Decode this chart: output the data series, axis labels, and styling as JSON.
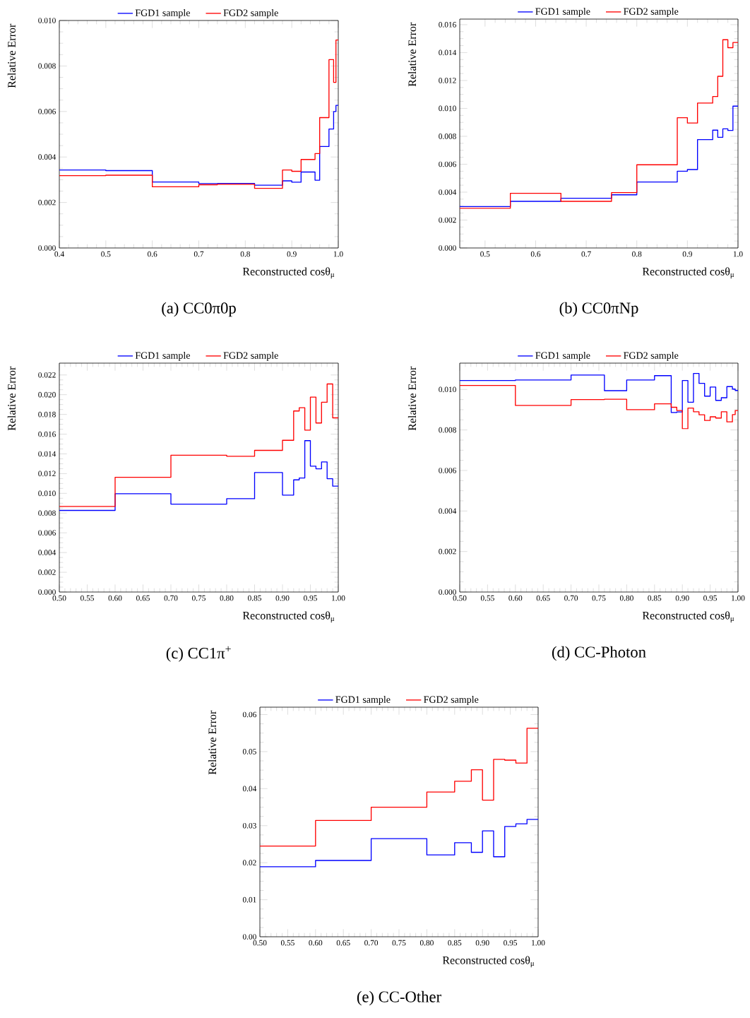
{
  "chart_data": [
    {
      "type": "step",
      "title": "(a) CC0π0p",
      "xlabel": "Reconstructed cosθ$_{μ}$",
      "ylabel": "Relative Error",
      "legend": "top",
      "xlim": [
        0.4,
        1.0
      ],
      "ylim": [
        0,
        0.01
      ],
      "xticks": [
        {
          "value": 0.4,
          "label": "0.4"
        },
        {
          "value": 0.5,
          "label": "0.5"
        },
        {
          "value": 0.6,
          "label": "0.6"
        },
        {
          "value": 0.7,
          "label": "0.7"
        },
        {
          "value": 0.8,
          "label": "0.8"
        },
        {
          "value": 0.9,
          "label": "0.9"
        },
        {
          "value": 1.0,
          "label": "1.0"
        }
      ],
      "yticks": [
        {
          "value": 0,
          "label": "0.000"
        },
        {
          "value": 0.002,
          "label": "0.002"
        },
        {
          "value": 0.004,
          "label": "0.004"
        },
        {
          "value": 0.006,
          "label": "0.006"
        },
        {
          "value": 0.008,
          "label": "0.008"
        },
        {
          "value": 0.01,
          "label": "0.010"
        }
      ],
      "series": [
        {
          "name": "FGD1 sample",
          "color": "#0000ff",
          "x": [
            0.4,
            0.5,
            0.6,
            0.7,
            0.74,
            0.82,
            0.88,
            0.9,
            0.92,
            0.95,
            0.96,
            0.98,
            0.99,
            0.995,
            1.0
          ],
          "values": [
            0.00343,
            0.0034,
            0.0029,
            0.00283,
            0.00284,
            0.00276,
            0.00295,
            0.00289,
            0.00334,
            0.00298,
            0.00446,
            0.00523,
            0.006,
            0.00627,
            0.00627
          ]
        },
        {
          "name": "FGD2 sample",
          "color": "#ff0000",
          "x": [
            0.4,
            0.5,
            0.6,
            0.7,
            0.74,
            0.82,
            0.88,
            0.9,
            0.92,
            0.95,
            0.96,
            0.98,
            0.99,
            0.995,
            1.0
          ],
          "values": [
            0.00318,
            0.0032,
            0.00269,
            0.00278,
            0.0028,
            0.00262,
            0.00343,
            0.00337,
            0.00389,
            0.00415,
            0.00573,
            0.00828,
            0.00728,
            0.00914,
            0.00914
          ]
        }
      ]
    },
    {
      "type": "step",
      "title": "(b) CC0πNp",
      "xlabel": "Reconstructed cosθ$_{μ}$",
      "ylabel": "Relative Error",
      "legend": "top",
      "xlim": [
        0.45,
        1.0
      ],
      "ylim": [
        0,
        0.0164
      ],
      "xticks": [
        {
          "value": 0.5,
          "label": "0.5"
        },
        {
          "value": 0.6,
          "label": "0.6"
        },
        {
          "value": 0.7,
          "label": "0.7"
        },
        {
          "value": 0.8,
          "label": "0.8"
        },
        {
          "value": 0.9,
          "label": "0.9"
        },
        {
          "value": 1.0,
          "label": "1.0"
        }
      ],
      "yticks": [
        {
          "value": 0,
          "label": "0.000"
        },
        {
          "value": 0.002,
          "label": "0.002"
        },
        {
          "value": 0.004,
          "label": "0.004"
        },
        {
          "value": 0.006,
          "label": "0.006"
        },
        {
          "value": 0.008,
          "label": "0.008"
        },
        {
          "value": 0.01,
          "label": "0.010"
        },
        {
          "value": 0.012,
          "label": "0.012"
        },
        {
          "value": 0.014,
          "label": "0.014"
        },
        {
          "value": 0.016,
          "label": "0.016"
        }
      ],
      "series": [
        {
          "name": "FGD1 sample",
          "color": "#0000ff",
          "x": [
            0.45,
            0.55,
            0.65,
            0.75,
            0.8,
            0.88,
            0.9,
            0.92,
            0.95,
            0.96,
            0.97,
            0.98,
            0.99,
            1.0
          ],
          "values": [
            0.00297,
            0.00334,
            0.00356,
            0.00381,
            0.00473,
            0.0055,
            0.00562,
            0.00776,
            0.00844,
            0.00793,
            0.00854,
            0.00842,
            0.01016,
            0.01016
          ]
        },
        {
          "name": "FGD2 sample",
          "color": "#ff0000",
          "x": [
            0.45,
            0.55,
            0.65,
            0.75,
            0.8,
            0.88,
            0.9,
            0.92,
            0.95,
            0.96,
            0.97,
            0.98,
            0.99,
            1.0
          ],
          "values": [
            0.00284,
            0.00392,
            0.00334,
            0.00397,
            0.00596,
            0.00933,
            0.00895,
            0.01038,
            0.01085,
            0.0123,
            0.01492,
            0.01435,
            0.01472,
            0.01472
          ]
        }
      ]
    },
    {
      "type": "step",
      "title": "(c) CC1π$^{+}$",
      "xlabel": "Reconstructed cosθ$_{μ}$",
      "ylabel": "Relative Error",
      "legend": "top",
      "xlim": [
        0.5,
        1.0
      ],
      "ylim": [
        0,
        0.0232
      ],
      "xticks": [
        {
          "value": 0.5,
          "label": "0.50"
        },
        {
          "value": 0.55,
          "label": "0.55"
        },
        {
          "value": 0.6,
          "label": "0.60"
        },
        {
          "value": 0.65,
          "label": "0.65"
        },
        {
          "value": 0.7,
          "label": "0.70"
        },
        {
          "value": 0.75,
          "label": "0.75"
        },
        {
          "value": 0.8,
          "label": "0.80"
        },
        {
          "value": 0.85,
          "label": "0.85"
        },
        {
          "value": 0.9,
          "label": "0.90"
        },
        {
          "value": 0.95,
          "label": "0.95"
        },
        {
          "value": 1.0,
          "label": "1.00"
        }
      ],
      "yticks": [
        {
          "value": 0,
          "label": "0.000"
        },
        {
          "value": 0.002,
          "label": "0.002"
        },
        {
          "value": 0.004,
          "label": "0.004"
        },
        {
          "value": 0.006,
          "label": "0.006"
        },
        {
          "value": 0.008,
          "label": "0.008"
        },
        {
          "value": 0.01,
          "label": "0.010"
        },
        {
          "value": 0.012,
          "label": "0.012"
        },
        {
          "value": 0.014,
          "label": "0.014"
        },
        {
          "value": 0.016,
          "label": "0.016"
        },
        {
          "value": 0.018,
          "label": "0.018"
        },
        {
          "value": 0.02,
          "label": "0.020"
        },
        {
          "value": 0.022,
          "label": "0.022"
        }
      ],
      "series": [
        {
          "name": "FGD1 sample",
          "color": "#0000ff",
          "x": [
            0.5,
            0.6,
            0.7,
            0.8,
            0.85,
            0.9,
            0.92,
            0.93,
            0.94,
            0.95,
            0.96,
            0.97,
            0.98,
            0.99,
            1.0
          ],
          "values": [
            0.00827,
            0.00996,
            0.00891,
            0.00946,
            0.01211,
            0.00982,
            0.01137,
            0.01156,
            0.01534,
            0.01276,
            0.01249,
            0.01319,
            0.01149,
            0.01073,
            0.01073
          ]
        },
        {
          "name": "FGD2 sample",
          "color": "#ff0000",
          "x": [
            0.5,
            0.6,
            0.7,
            0.8,
            0.85,
            0.9,
            0.92,
            0.93,
            0.94,
            0.95,
            0.96,
            0.97,
            0.98,
            0.99,
            1.0
          ],
          "values": [
            0.00867,
            0.01163,
            0.01386,
            0.01376,
            0.01436,
            0.01538,
            0.01835,
            0.01868,
            0.01641,
            0.01976,
            0.01713,
            0.01923,
            0.02109,
            0.01765,
            0.01765
          ]
        }
      ]
    },
    {
      "type": "step",
      "title": "(d) CC-Photon",
      "xlabel": "Reconstructed cosθ$_{μ}$",
      "ylabel": "Relative Error",
      "legend": "top",
      "xlim": [
        0.5,
        1.0
      ],
      "ylim": [
        0,
        0.0113
      ],
      "xticks": [
        {
          "value": 0.5,
          "label": "0.50"
        },
        {
          "value": 0.55,
          "label": "0.55"
        },
        {
          "value": 0.6,
          "label": "0.60"
        },
        {
          "value": 0.65,
          "label": "0.65"
        },
        {
          "value": 0.7,
          "label": "0.70"
        },
        {
          "value": 0.75,
          "label": "0.75"
        },
        {
          "value": 0.8,
          "label": "0.80"
        },
        {
          "value": 0.85,
          "label": "0.85"
        },
        {
          "value": 0.9,
          "label": "0.90"
        },
        {
          "value": 0.95,
          "label": "0.95"
        },
        {
          "value": 1.0,
          "label": "1.00"
        }
      ],
      "yticks": [
        {
          "value": 0,
          "label": "0.000"
        },
        {
          "value": 0.002,
          "label": "0.002"
        },
        {
          "value": 0.004,
          "label": "0.004"
        },
        {
          "value": 0.006,
          "label": "0.006"
        },
        {
          "value": 0.008,
          "label": "0.008"
        },
        {
          "value": 0.01,
          "label": "0.010"
        }
      ],
      "series": [
        {
          "name": "FGD1 sample",
          "color": "#0000ff",
          "x": [
            0.5,
            0.6,
            0.7,
            0.76,
            0.8,
            0.85,
            0.88,
            0.89,
            0.9,
            0.91,
            0.92,
            0.93,
            0.94,
            0.95,
            0.96,
            0.97,
            0.98,
            0.99,
            0.995,
            1.0
          ],
          "values": [
            0.01044,
            0.01047,
            0.01071,
            0.00994,
            0.01047,
            0.01068,
            0.00886,
            0.00889,
            0.01044,
            0.00937,
            0.01079,
            0.0103,
            0.00967,
            0.01012,
            0.00946,
            0.00959,
            0.01014,
            0.01002,
            0.00995,
            0.00995
          ]
        },
        {
          "name": "FGD2 sample",
          "color": "#ff0000",
          "x": [
            0.5,
            0.6,
            0.7,
            0.76,
            0.8,
            0.85,
            0.88,
            0.89,
            0.9,
            0.91,
            0.92,
            0.93,
            0.94,
            0.95,
            0.96,
            0.97,
            0.98,
            0.99,
            0.995,
            1.0
          ],
          "values": [
            0.0102,
            0.00921,
            0.0095,
            0.00952,
            0.009,
            0.00929,
            0.00912,
            0.00896,
            0.00806,
            0.00908,
            0.0089,
            0.00875,
            0.00847,
            0.00865,
            0.00859,
            0.0089,
            0.0084,
            0.00876,
            0.00896,
            0.00896
          ]
        }
      ]
    },
    {
      "type": "step",
      "title": "(e) CC-Other",
      "xlabel": "Reconstructed cosθ$_{μ}$",
      "ylabel": "Relative Error",
      "legend": "top",
      "xlim": [
        0.5,
        1.0
      ],
      "ylim": [
        0,
        0.062
      ],
      "xticks": [
        {
          "value": 0.5,
          "label": "0.50"
        },
        {
          "value": 0.55,
          "label": "0.55"
        },
        {
          "value": 0.6,
          "label": "0.60"
        },
        {
          "value": 0.65,
          "label": "0.65"
        },
        {
          "value": 0.7,
          "label": "0.70"
        },
        {
          "value": 0.75,
          "label": "0.75"
        },
        {
          "value": 0.8,
          "label": "0.80"
        },
        {
          "value": 0.85,
          "label": "0.85"
        },
        {
          "value": 0.9,
          "label": "0.90"
        },
        {
          "value": 0.95,
          "label": "0.95"
        },
        {
          "value": 1.0,
          "label": "1.00"
        }
      ],
      "yticks": [
        {
          "value": 0,
          "label": "0.00"
        },
        {
          "value": 0.01,
          "label": "0.01"
        },
        {
          "value": 0.02,
          "label": "0.02"
        },
        {
          "value": 0.03,
          "label": "0.03"
        },
        {
          "value": 0.04,
          "label": "0.04"
        },
        {
          "value": 0.05,
          "label": "0.05"
        },
        {
          "value": 0.06,
          "label": "0.06"
        }
      ],
      "series": [
        {
          "name": "FGD1 sample",
          "color": "#0000ff",
          "x": [
            0.5,
            0.6,
            0.7,
            0.8,
            0.85,
            0.88,
            0.9,
            0.92,
            0.94,
            0.96,
            0.98,
            1.0
          ],
          "values": [
            0.0189,
            0.0206,
            0.0265,
            0.0221,
            0.0254,
            0.0228,
            0.0286,
            0.0216,
            0.0298,
            0.0305,
            0.0317,
            0.0317
          ]
        },
        {
          "name": "FGD2 sample",
          "color": "#ff0000",
          "x": [
            0.5,
            0.6,
            0.7,
            0.8,
            0.85,
            0.88,
            0.9,
            0.92,
            0.94,
            0.96,
            0.98,
            1.0
          ],
          "values": [
            0.0245,
            0.0314,
            0.035,
            0.0391,
            0.042,
            0.0451,
            0.0369,
            0.0479,
            0.0477,
            0.0469,
            0.0563,
            0.0563
          ]
        }
      ]
    }
  ]
}
